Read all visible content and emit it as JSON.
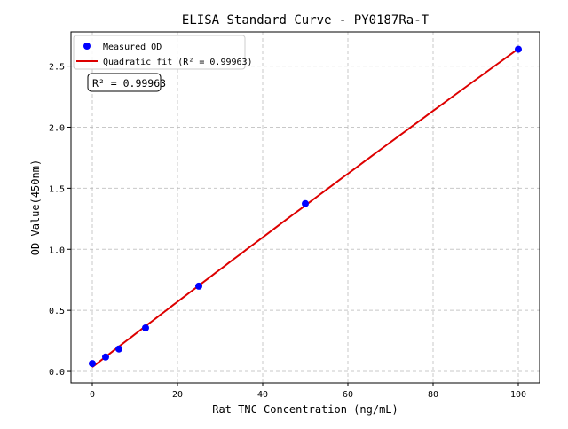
{
  "chart_data": {
    "type": "scatter",
    "title": "ELISA Standard Curve - PY0187Ra-T",
    "xlabel": "Rat TNC Concentration (ng/mL)",
    "ylabel": "OD Value(450nm)",
    "xlim": [
      -5,
      105
    ],
    "ylim": [
      -0.094,
      2.78
    ],
    "xticks": [
      0,
      20,
      40,
      60,
      80,
      100
    ],
    "yticks": [
      "0.0",
      "0.5",
      "1.0",
      "1.5",
      "2.0",
      "2.5"
    ],
    "grid": true,
    "legend_position": "top-left",
    "series": [
      {
        "name": "Measured OD",
        "kind": "points",
        "color": "#0000ff",
        "x": [
          0,
          3.125,
          6.25,
          12.5,
          25,
          50,
          100
        ],
        "y": [
          0.065,
          0.118,
          0.184,
          0.356,
          0.698,
          1.374,
          2.638
        ]
      },
      {
        "name": "Quadratic fit (R² = 0.99963)",
        "kind": "line",
        "color": "#dd0000"
      }
    ],
    "annotation": "R² = 0.99963"
  }
}
